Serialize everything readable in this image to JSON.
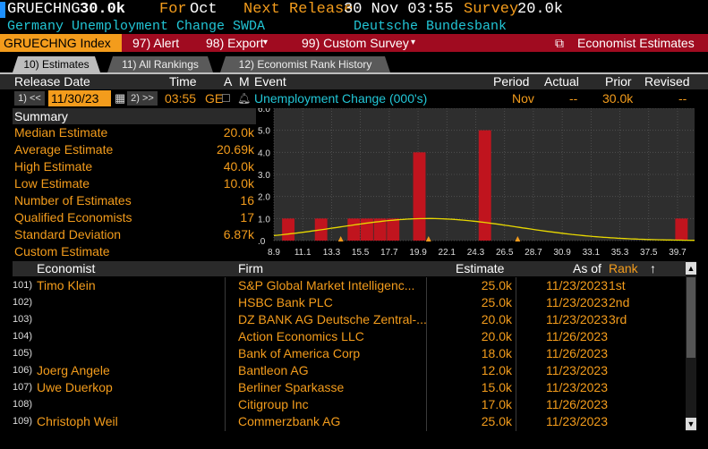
{
  "top": {
    "ticker": "GRUECHNG",
    "value": "30.0k",
    "for_label": "For",
    "for_value": "Oct",
    "next_label": "Next Release",
    "next_value": "30 Nov 03:55",
    "survey_label": "Survey",
    "survey_value": "20.0k",
    "description": "Germany Unemployment Change SWDA",
    "source": "Deutsche Bundesbank"
  },
  "toolbar": {
    "index_label": "GRUECHNG Index",
    "alert_label": "97) Alert",
    "export_label": "98) Export",
    "custom_survey_label": "99) Custom Survey",
    "economist_estimates_label": "Economist Estimates"
  },
  "tabs": [
    {
      "label": "10) Estimates"
    },
    {
      "label": "11) All Rankings"
    },
    {
      "label": "12) Economist Rank History"
    }
  ],
  "header": {
    "release_date": "Release Date",
    "time": "Time",
    "a": "A",
    "m": "M",
    "event": "Event",
    "period": "Period",
    "actual": "Actual",
    "prior": "Prior",
    "revised": "Revised"
  },
  "release": {
    "prev_btn": "1) <<",
    "date": "11/30/23",
    "next_btn": "2) >>",
    "time": "03:55",
    "country": "GE",
    "event": "Unemployment Change (000's)",
    "period": "Nov",
    "actual": "--",
    "prior": "30.0k",
    "revised": "--"
  },
  "summary": {
    "title": "Summary",
    "rows": [
      {
        "label": "Median Estimate",
        "value": "20.0k"
      },
      {
        "label": "Average Estimate",
        "value": "20.69k"
      },
      {
        "label": "High Estimate",
        "value": "40.0k"
      },
      {
        "label": "Low Estimate",
        "value": "10.0k"
      },
      {
        "label": "Number of Estimates",
        "value": "16"
      },
      {
        "label": "Qualified Economists",
        "value": "17"
      },
      {
        "label": "Standard Deviation",
        "value": "6.87k"
      },
      {
        "label": "Custom Estimate",
        "value": ""
      }
    ]
  },
  "chart_data": {
    "type": "bar",
    "x_ticks": [
      "8.9",
      "11.1",
      "13.3",
      "15.5",
      "17.7",
      "19.9",
      "22.1",
      "24.3",
      "26.5",
      "28.7",
      "30.9",
      "33.1",
      "35.3",
      "37.5",
      "39.7"
    ],
    "y_ticks": [
      "6.0",
      "5.0",
      "4.0",
      "3.0",
      "2.0",
      "1.0",
      ".0"
    ],
    "xlim": [
      8.9,
      41.0
    ],
    "ylim": [
      0,
      6
    ],
    "bars": [
      {
        "x": 10.0,
        "count": 1
      },
      {
        "x": 12.5,
        "count": 1
      },
      {
        "x": 15.0,
        "count": 1
      },
      {
        "x": 16.0,
        "count": 1
      },
      {
        "x": 17.0,
        "count": 1
      },
      {
        "x": 18.0,
        "count": 1
      },
      {
        "x": 20.0,
        "count": 4
      },
      {
        "x": 25.0,
        "count": 5
      },
      {
        "x": 40.0,
        "count": 1
      }
    ],
    "curve": "normal-distribution",
    "bar_color": "#c0141e",
    "curve_color": "#e8d800",
    "marker_color": "#f39c1c",
    "markers": [
      14.0,
      20.7,
      27.5
    ]
  },
  "table": {
    "headers": {
      "economist": "Economist",
      "firm": "Firm",
      "estimate": "Estimate",
      "asof": "As of",
      "rank": "Rank"
    },
    "rows": [
      {
        "num": "101)",
        "economist": "Timo Klein",
        "firm": "S&P Global Market Intelligenc...",
        "estimate": "25.0k",
        "asof": "11/23/2023",
        "rank": "1st"
      },
      {
        "num": "102)",
        "economist": "",
        "firm": "HSBC Bank PLC",
        "estimate": "25.0k",
        "asof": "11/23/2023",
        "rank": "2nd"
      },
      {
        "num": "103)",
        "economist": "",
        "firm": "DZ BANK AG Deutsche Zentral-...",
        "estimate": "20.0k",
        "asof": "11/23/2023",
        "rank": "3rd"
      },
      {
        "num": "104)",
        "economist": "",
        "firm": "Action Economics LLC",
        "estimate": "20.0k",
        "asof": "11/26/2023",
        "rank": ""
      },
      {
        "num": "105)",
        "economist": "",
        "firm": "Bank of America Corp",
        "estimate": "18.0k",
        "asof": "11/26/2023",
        "rank": ""
      },
      {
        "num": "106)",
        "economist": "Joerg Angele",
        "firm": "Bantleon AG",
        "estimate": "12.0k",
        "asof": "11/23/2023",
        "rank": ""
      },
      {
        "num": "107)",
        "economist": "Uwe Duerkop",
        "firm": "Berliner Sparkasse",
        "estimate": "15.0k",
        "asof": "11/23/2023",
        "rank": ""
      },
      {
        "num": "108)",
        "economist": "",
        "firm": "Citigroup Inc",
        "estimate": "17.0k",
        "asof": "11/26/2023",
        "rank": ""
      },
      {
        "num": "109)",
        "economist": "Christoph Weil",
        "firm": "Commerzbank AG",
        "estimate": "25.0k",
        "asof": "11/23/2023",
        "rank": ""
      }
    ]
  }
}
